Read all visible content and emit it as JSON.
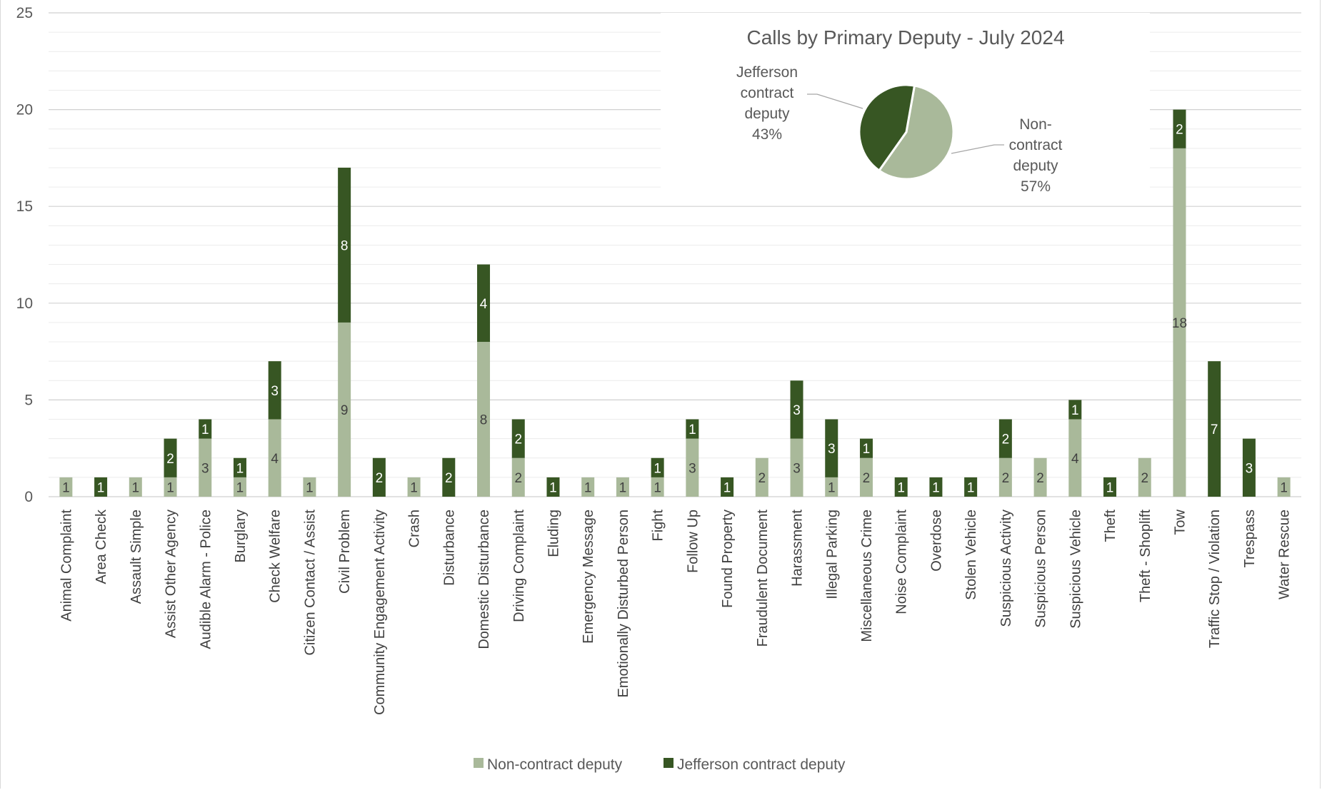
{
  "chart_data": [
    {
      "type": "bar",
      "stacked": true,
      "categories": [
        "Animal Complaint",
        "Area Check",
        "Assault Simple",
        "Assist Other Agency",
        "Audible Alarm - Police",
        "Burglary",
        "Check Welfare",
        "Citizen Contact / Assist",
        "Civil Problem",
        "Community Engagement Activity",
        "Crash",
        "Disturbance",
        "Domestic Disturbance",
        "Driving Complaint",
        "Eluding",
        "Emergency Message",
        "Emotionally Disturbed Person",
        "Fight",
        "Follow Up",
        "Found Property",
        "Fraudulent Document",
        "Harassment",
        "Illegal Parking",
        "Miscellaneous Crime",
        "Noise Complaint",
        "Overdose",
        "Stolen Vehicle",
        "Suspicious Activity",
        "Suspicious Person",
        "Suspicious Vehicle",
        "Theft",
        "Theft - Shoplift",
        "Tow",
        "Traffic Stop / Violation",
        "Trespass",
        "Water Rescue"
      ],
      "series": [
        {
          "name": "Non-contract deputy",
          "color": "#a9b99a",
          "values": [
            1,
            0,
            1,
            1,
            3,
            1,
            4,
            1,
            9,
            0,
            1,
            0,
            8,
            2,
            0,
            1,
            1,
            1,
            3,
            0,
            2,
            3,
            1,
            2,
            0,
            0,
            0,
            2,
            2,
            4,
            0,
            2,
            18,
            0,
            0,
            1
          ]
        },
        {
          "name": "Jefferson contract deputy",
          "color": "#375623",
          "values": [
            0,
            1,
            0,
            2,
            1,
            1,
            3,
            0,
            8,
            2,
            0,
            2,
            4,
            2,
            1,
            0,
            0,
            1,
            1,
            1,
            0,
            3,
            3,
            1,
            1,
            1,
            1,
            2,
            0,
            1,
            1,
            0,
            2,
            7,
            3,
            0
          ]
        }
      ],
      "ylim": [
        0,
        25
      ],
      "yticks": [
        0,
        5,
        10,
        15,
        20,
        25
      ],
      "grid": true,
      "legend": "bottom"
    },
    {
      "type": "pie",
      "title": "Calls by Primary Deputy - July 2024",
      "slices": [
        {
          "name": "Jefferson contract deputy",
          "label_lines": [
            "Jefferson",
            "contract",
            "deputy"
          ],
          "percent_label": "43%",
          "value": 43,
          "color": "#375623"
        },
        {
          "name": "Non-contract deputy",
          "label_lines": [
            "Non-",
            "contract",
            "deputy"
          ],
          "percent_label": "57%",
          "value": 57,
          "color": "#a9b99a"
        }
      ]
    }
  ]
}
